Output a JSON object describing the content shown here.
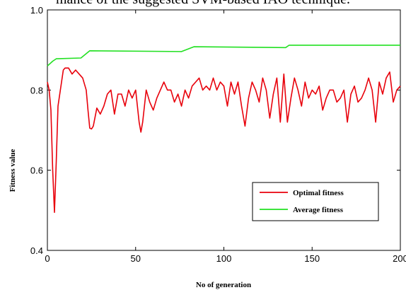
{
  "caption": "mance of the suggested SVM-based IAO technique.",
  "chart_data": {
    "type": "line",
    "xlabel": "No of generation",
    "ylabel": "Fitness value",
    "xlim": [
      0,
      200
    ],
    "ylim": [
      0.4,
      1.0
    ],
    "xticks": [
      0,
      50,
      100,
      150,
      200
    ],
    "xtick_labels": [
      "0",
      "50",
      "100",
      "150",
      "200"
    ],
    "yticks": [
      0.4,
      0.6,
      0.8,
      1.0
    ],
    "ytick_labels": [
      "0.4",
      "0.6",
      "0.8",
      "1.0"
    ],
    "grid": false,
    "legend": "bottom-right",
    "series": [
      {
        "name": "Optimal fitness",
        "color": "#e8000b",
        "x": [
          0,
          1,
          2,
          3,
          4,
          5,
          6,
          7,
          8,
          9,
          10,
          12,
          14,
          16,
          18,
          20,
          22,
          23,
          24,
          25,
          26,
          28,
          30,
          32,
          34,
          36,
          38,
          40,
          42,
          44,
          46,
          48,
          50,
          52,
          53,
          54,
          56,
          58,
          60,
          62,
          64,
          66,
          68,
          70,
          72,
          74,
          76,
          78,
          80,
          82,
          84,
          86,
          88,
          90,
          92,
          94,
          96,
          98,
          100,
          102,
          104,
          106,
          108,
          110,
          112,
          114,
          116,
          118,
          120,
          122,
          124,
          126,
          128,
          130,
          132,
          134,
          136,
          138,
          140,
          142,
          144,
          146,
          148,
          150,
          152,
          154,
          156,
          158,
          160,
          162,
          164,
          166,
          168,
          170,
          172,
          174,
          176,
          178,
          180,
          182,
          184,
          186,
          188,
          190,
          192,
          194,
          196,
          198,
          200
        ],
        "values": [
          0.82,
          0.8,
          0.75,
          0.6,
          0.495,
          0.62,
          0.76,
          0.79,
          0.82,
          0.85,
          0.855,
          0.855,
          0.84,
          0.85,
          0.84,
          0.83,
          0.8,
          0.75,
          0.705,
          0.703,
          0.71,
          0.755,
          0.74,
          0.76,
          0.79,
          0.8,
          0.74,
          0.79,
          0.79,
          0.76,
          0.8,
          0.78,
          0.8,
          0.72,
          0.695,
          0.72,
          0.8,
          0.77,
          0.75,
          0.78,
          0.8,
          0.82,
          0.8,
          0.8,
          0.77,
          0.79,
          0.76,
          0.8,
          0.78,
          0.81,
          0.82,
          0.83,
          0.8,
          0.81,
          0.8,
          0.83,
          0.8,
          0.82,
          0.81,
          0.76,
          0.82,
          0.79,
          0.82,
          0.76,
          0.71,
          0.78,
          0.82,
          0.8,
          0.77,
          0.83,
          0.8,
          0.73,
          0.79,
          0.83,
          0.72,
          0.84,
          0.72,
          0.78,
          0.83,
          0.8,
          0.76,
          0.82,
          0.78,
          0.8,
          0.79,
          0.81,
          0.75,
          0.78,
          0.8,
          0.8,
          0.77,
          0.78,
          0.8,
          0.72,
          0.79,
          0.81,
          0.77,
          0.78,
          0.8,
          0.83,
          0.8,
          0.72,
          0.82,
          0.79,
          0.83,
          0.845,
          0.77,
          0.8,
          0.81
        ]
      },
      {
        "name": "Average fitness",
        "color": "#22e022",
        "x": [
          0,
          3,
          5,
          19,
          24,
          76,
          83,
          135,
          137,
          200
        ],
        "values": [
          0.86,
          0.872,
          0.878,
          0.88,
          0.898,
          0.896,
          0.908,
          0.906,
          0.912,
          0.912
        ]
      }
    ]
  }
}
